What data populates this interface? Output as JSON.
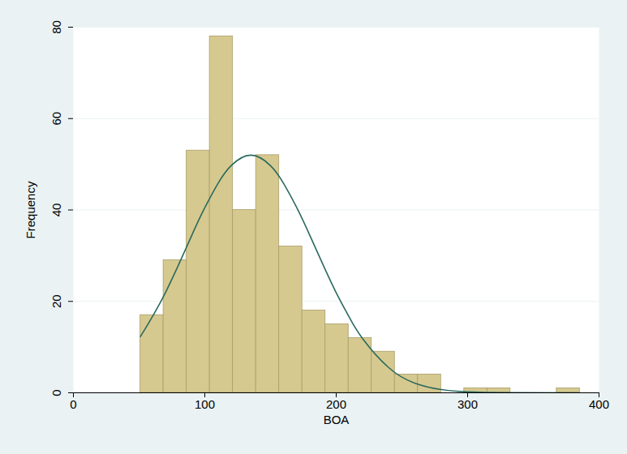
{
  "chart_data": {
    "type": "histogram",
    "x_label": "BOA",
    "y_label": "Frequency",
    "bins": [
      51,
      68.6,
      86.2,
      103.8,
      121.4,
      139,
      156.6,
      174.2,
      191.8,
      209.4,
      227,
      244.6,
      262.2,
      279.8,
      297.4,
      315,
      332.6,
      350.2,
      367.8,
      385.4
    ],
    "counts": [
      17,
      29,
      53,
      78,
      40,
      52,
      32,
      18,
      15,
      12,
      9,
      4,
      4,
      0,
      1,
      1,
      0,
      0,
      1
    ],
    "color": "#D6C98F",
    "curve": {
      "type": "line",
      "color": "#2B6A5E",
      "x": [
        51,
        70,
        90,
        100,
        110,
        120,
        135,
        150,
        160,
        170,
        180,
        190,
        200,
        210,
        220,
        240,
        260,
        280,
        300,
        330,
        385
      ],
      "values": [
        12.3,
        21.9,
        34.4,
        40.5,
        45.8,
        49.7,
        52,
        49.7,
        45.8,
        40.5,
        34.4,
        28,
        21.9,
        16.5,
        11.9,
        5.5,
        2.1,
        0.7,
        0.2,
        0.02,
        0
      ]
    },
    "xlim": [
      0,
      400
    ],
    "ylim": [
      0,
      80
    ],
    "xticks": [
      0,
      100,
      200,
      300,
      400
    ],
    "yticks": [
      0,
      20,
      40,
      60,
      80
    ],
    "grid": true
  }
}
